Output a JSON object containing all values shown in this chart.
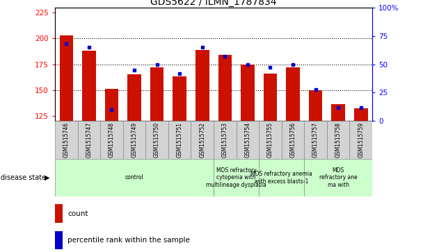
{
  "title": "GDS5622 / ILMN_1787834",
  "samples": [
    "GSM1515746",
    "GSM1515747",
    "GSM1515748",
    "GSM1515749",
    "GSM1515750",
    "GSM1515751",
    "GSM1515752",
    "GSM1515753",
    "GSM1515754",
    "GSM1515755",
    "GSM1515756",
    "GSM1515757",
    "GSM1515758",
    "GSM1515759"
  ],
  "counts": [
    203,
    188,
    151,
    165,
    172,
    163,
    189,
    184,
    175,
    166,
    172,
    150,
    136,
    132
  ],
  "percentiles": [
    68,
    65,
    10,
    45,
    50,
    42,
    65,
    57,
    50,
    47,
    50,
    28,
    12,
    12
  ],
  "ylim_left": [
    120,
    230
  ],
  "ylim_right": [
    0,
    100
  ],
  "yticks_left": [
    125,
    150,
    175,
    200,
    225
  ],
  "yticks_right": [
    0,
    25,
    50,
    75,
    100
  ],
  "bar_color": "#cc1100",
  "dot_color": "#0000cc",
  "disease_groups": [
    {
      "label": "control",
      "start": 0,
      "end": 7
    },
    {
      "label": "MDS refractory\ncytopenia with\nmultilineage dysplasia",
      "start": 7,
      "end": 9
    },
    {
      "label": "MDS refractory anemia\nwith excess blasts-1",
      "start": 9,
      "end": 11
    },
    {
      "label": "MDS\nrefractory ane\nma with",
      "start": 11,
      "end": 14
    }
  ],
  "legend_count_color": "#cc1100",
  "legend_dot_color": "#0000cc",
  "group_color": "#ccffcc",
  "tick_box_color": "#d3d3d3"
}
